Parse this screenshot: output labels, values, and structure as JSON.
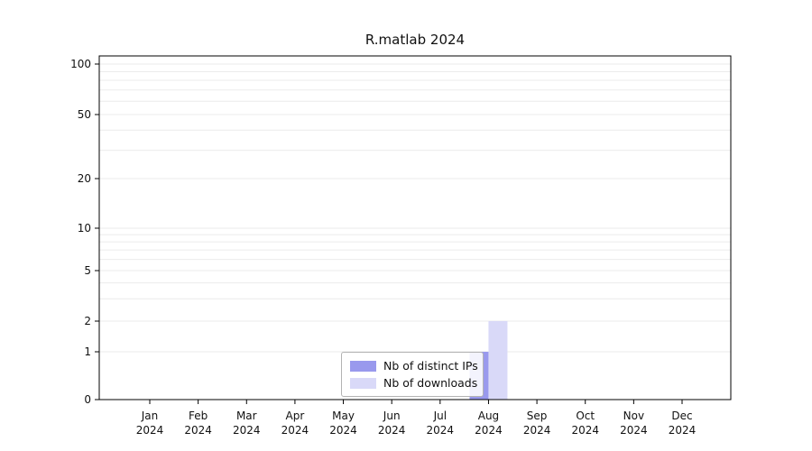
{
  "chart_data": {
    "type": "bar",
    "title": "R.matlab 2024",
    "categories": [
      "Jan",
      "Feb",
      "Mar",
      "Apr",
      "May",
      "Jun",
      "Jul",
      "Aug",
      "Sep",
      "Oct",
      "Nov",
      "Dec"
    ],
    "year_label": "2024",
    "series": [
      {
        "name": "Nb of distinct IPs",
        "color": "#9999ed",
        "values": [
          0,
          0,
          0,
          0,
          0,
          0,
          0,
          1,
          0,
          0,
          0,
          0
        ]
      },
      {
        "name": "Nb of downloads",
        "color": "#d9d9f8",
        "values": [
          0,
          0,
          0,
          0,
          0,
          0,
          0,
          2,
          0,
          0,
          0,
          0
        ]
      }
    ],
    "yticks": [
      0,
      1,
      2,
      5,
      10,
      20,
      50,
      100
    ],
    "ylim": [
      0,
      100
    ],
    "yscale": "log-like",
    "grid": "horizontal-minor-log",
    "legend_position": "bottom-center"
  }
}
